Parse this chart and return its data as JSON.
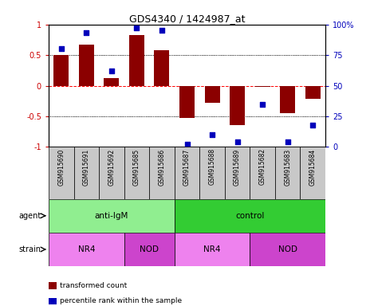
{
  "title": "GDS4340 / 1424987_at",
  "samples": [
    "GSM915690",
    "GSM915691",
    "GSM915692",
    "GSM915685",
    "GSM915686",
    "GSM915687",
    "GSM915688",
    "GSM915689",
    "GSM915682",
    "GSM915683",
    "GSM915684"
  ],
  "bar_values": [
    0.5,
    0.67,
    0.12,
    0.83,
    0.58,
    -0.53,
    -0.28,
    -0.65,
    -0.02,
    -0.45,
    -0.22
  ],
  "percentile_values": [
    80,
    93,
    62,
    97,
    95,
    2,
    10,
    4,
    35,
    4,
    18
  ],
  "bar_color": "#8B0000",
  "dot_color": "#0000BB",
  "agent_labels": [
    {
      "label": "anti-IgM",
      "start": 0,
      "end": 5,
      "color": "#90EE90"
    },
    {
      "label": "control",
      "start": 5,
      "end": 11,
      "color": "#33CC33"
    }
  ],
  "strain_labels": [
    {
      "label": "NR4",
      "start": 0,
      "end": 3,
      "color": "#EE82EE"
    },
    {
      "label": "NOD",
      "start": 3,
      "end": 5,
      "color": "#CC44CC"
    },
    {
      "label": "NR4",
      "start": 5,
      "end": 8,
      "color": "#EE82EE"
    },
    {
      "label": "NOD",
      "start": 8,
      "end": 11,
      "color": "#CC44CC"
    }
  ],
  "ylim": [
    -1.0,
    1.0
  ],
  "y2lim": [
    0,
    100
  ],
  "yticks_left": [
    -1,
    -0.5,
    0,
    0.5,
    1
  ],
  "ytick_labels_left": [
    "-1",
    "-0.5",
    "0",
    "0.5",
    "1"
  ],
  "yticks_right": [
    0,
    25,
    50,
    75,
    100
  ],
  "ytick_labels_right": [
    "0",
    "25",
    "50",
    "75",
    "100%"
  ],
  "legend_items": [
    {
      "color": "#8B0000",
      "label": "transformed count"
    },
    {
      "color": "#0000BB",
      "label": "percentile rank within the sample"
    }
  ]
}
